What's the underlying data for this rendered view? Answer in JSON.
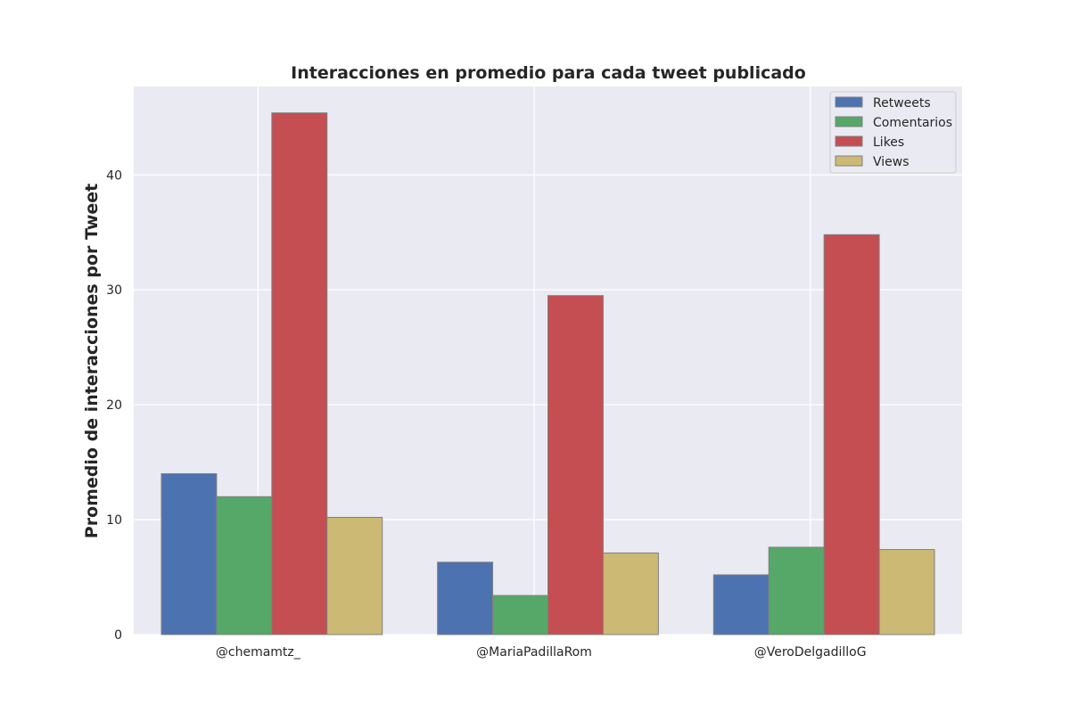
{
  "chart_data": {
    "type": "bar",
    "title": "Interacciones en promedio para cada tweet publicado",
    "xlabel": "",
    "ylabel": "Promedio de interacciones por Tweet",
    "categories": [
      "@chemamtz_",
      "@MariaPadillaRom",
      "@VeroDelgadilloG"
    ],
    "series": [
      {
        "name": "Retweets",
        "color": "#4c72b0",
        "values": [
          14.0,
          6.3,
          5.2
        ]
      },
      {
        "name": "Comentarios",
        "color": "#55a868",
        "values": [
          12.0,
          3.4,
          7.6
        ]
      },
      {
        "name": "Likes",
        "color": "#c44e52",
        "values": [
          45.4,
          29.5,
          34.8
        ]
      },
      {
        "name": "Views",
        "color": "#ccb974",
        "values": [
          10.2,
          7.1,
          7.4
        ]
      }
    ],
    "ylim": [
      0,
      47.7
    ],
    "yticks": [
      0,
      10,
      20,
      30,
      40
    ],
    "grid": true,
    "legend_position": "top-right",
    "colors": {
      "plot_background": "#eaeaf2",
      "grid": "#ffffff",
      "bar_edge": "#808080"
    }
  }
}
